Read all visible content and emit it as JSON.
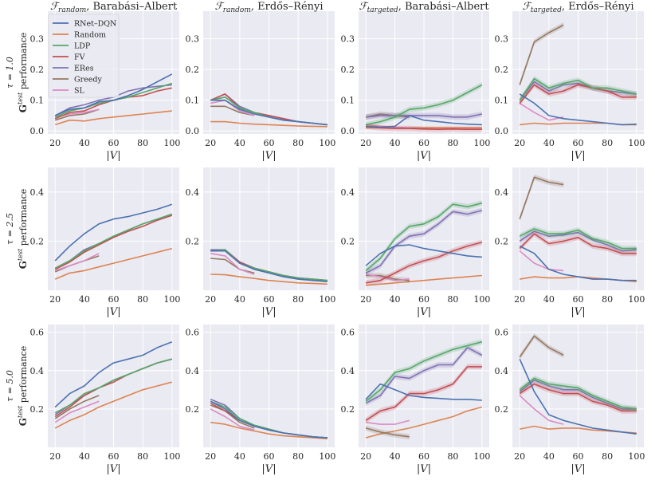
{
  "legend": [
    {
      "name": "RNet–DQN",
      "color": "#4c72b0"
    },
    {
      "name": "Random",
      "color": "#dd8452"
    },
    {
      "name": "LDP",
      "color": "#55a868"
    },
    {
      "name": "FV",
      "color": "#c44e52"
    },
    {
      "name": "ERes",
      "color": "#8172b3"
    },
    {
      "name": "Greedy",
      "color": "#937860"
    },
    {
      "name": "SL",
      "color": "#da8bc3"
    }
  ],
  "colors": {
    "background": "#eaeaf2",
    "grid": "#ffffff"
  },
  "chart_data": {
    "type": "line",
    "columns": [
      {
        "title_f": "ℱ",
        "title_sub": "random",
        "title_rest": ", Barabási–Albert"
      },
      {
        "title_f": "ℱ",
        "title_sub": "random",
        "title_rest": ", Erdős–Rényi"
      },
      {
        "title_f": "ℱ",
        "title_sub": "targeted",
        "title_rest": ", Barabási–Albert"
      },
      {
        "title_f": "ℱ",
        "title_sub": "targeted",
        "title_rest": ", Erdős–Rényi"
      }
    ],
    "rows": [
      {
        "tau_label": "τ = 1.0",
        "ylabel_G": "G",
        "ylabel_sup": "test",
        "ylabel_rest": " performance",
        "ylim": [
          -0.01,
          0.39
        ],
        "yticks": [
          "0.0",
          "0.1",
          "0.2",
          "0.3"
        ],
        "ytick_vals": [
          0,
          0.1,
          0.2,
          0.3
        ]
      },
      {
        "tau_label": "τ = 2.5",
        "ylabel_G": "G",
        "ylabel_sup": "test",
        "ylabel_rest": " performance",
        "ylim": [
          0.0,
          0.5
        ],
        "yticks": [
          "0.2",
          "0.4"
        ],
        "ytick_vals": [
          0.2,
          0.4
        ]
      },
      {
        "tau_label": "τ = 5.0",
        "ylabel_G": "G",
        "ylabel_sup": "test",
        "ylabel_rest": " performance",
        "ylim": [
          0.0,
          0.64
        ],
        "yticks": [
          "0.2",
          "0.4",
          "0.6"
        ],
        "ytick_vals": [
          0.2,
          0.4,
          0.6
        ]
      }
    ],
    "xlabel": "|V|",
    "xlim": [
      15,
      105
    ],
    "xticks": [
      "20",
      "40",
      "60",
      "80",
      "100"
    ],
    "xtick_vals": [
      20,
      40,
      60,
      80,
      100
    ],
    "x_full": [
      20,
      30,
      40,
      50,
      60,
      70,
      80,
      90,
      100
    ],
    "x_short": [
      20,
      30,
      40,
      50
    ],
    "panels": [
      [
        {
          "RNet–DQN": [
            0.05,
            0.07,
            0.075,
            0.095,
            0.1,
            0.115,
            0.135,
            0.16,
            0.185
          ],
          "Random": [
            0.02,
            0.035,
            0.032,
            0.04,
            0.045,
            0.05,
            0.055,
            0.06,
            0.065
          ],
          "LDP": [
            0.045,
            0.065,
            0.075,
            0.09,
            0.1,
            0.11,
            0.125,
            0.14,
            0.155
          ],
          "FV": [
            0.04,
            0.06,
            0.065,
            0.085,
            0.1,
            0.11,
            0.115,
            0.13,
            0.14
          ],
          "ERes": [
            0.05,
            0.075,
            0.085,
            0.1,
            0.11,
            0.13,
            0.14,
            0.145,
            0.15
          ],
          "Greedy": [
            0.035,
            0.05,
            0.055,
            0.07
          ],
          "SL": [
            0.045,
            0.055,
            0.06,
            0.07
          ]
        },
        {
          "RNet–DQN": [
            0.1,
            0.1,
            0.07,
            0.055,
            0.045,
            0.035,
            0.03,
            0.025,
            0.02
          ],
          "Random": [
            0.03,
            0.03,
            0.025,
            0.022,
            0.02,
            0.018,
            0.016,
            0.015,
            0.014
          ],
          "LDP": [
            0.1,
            0.11,
            0.075,
            0.06,
            0.045,
            0.035,
            0.03,
            0.025,
            0.02
          ],
          "FV": [
            0.1,
            0.12,
            0.075,
            0.06,
            0.05,
            0.04,
            0.03,
            0.025,
            0.02
          ],
          "ERes": [
            0.1,
            0.12,
            0.08,
            0.06,
            0.05,
            0.04,
            0.03,
            0.025,
            0.02
          ],
          "Greedy": [
            0.08,
            0.08,
            0.06,
            0.05
          ],
          "SL": [
            0.09,
            0.1,
            0.065,
            0.05
          ]
        },
        {
          "RNet–DQN": [
            0.015,
            0.012,
            0.015,
            0.05,
            0.035,
            0.03,
            0.025,
            0.022,
            0.02
          ],
          "Random": [
            0.01,
            0.01,
            0.01,
            0.01,
            0.01,
            0.01,
            0.01,
            0.01,
            0.01
          ],
          "LDP": [
            0.02,
            0.03,
            0.045,
            0.07,
            0.075,
            0.085,
            0.1,
            0.125,
            0.15
          ],
          "FV": [
            0.015,
            0.01,
            0.008,
            0.008,
            0.006,
            0.005,
            0.006,
            0.005,
            0.005
          ],
          "ERes": [
            0.045,
            0.05,
            0.05,
            0.05,
            0.05,
            0.05,
            0.045,
            0.045,
            0.055
          ],
          "Greedy": [
            0.045,
            0.055,
            0.05,
            0.045
          ],
          "SL": [
            0.02,
            0.015,
            0.012,
            0.01
          ]
        },
        {
          "RNet–DQN": [
            0.12,
            0.09,
            0.05,
            0.04,
            0.035,
            0.03,
            0.025,
            0.02,
            0.022
          ],
          "Random": [
            0.02,
            0.025,
            0.022,
            0.025,
            0.025,
            0.025,
            0.025,
            0.02,
            0.02
          ],
          "LDP": [
            0.1,
            0.17,
            0.14,
            0.155,
            0.165,
            0.14,
            0.14,
            0.13,
            0.12
          ],
          "FV": [
            0.09,
            0.15,
            0.12,
            0.13,
            0.15,
            0.14,
            0.13,
            0.11,
            0.11
          ],
          "ERes": [
            0.1,
            0.16,
            0.13,
            0.15,
            0.155,
            0.14,
            0.13,
            0.125,
            0.12
          ],
          "Greedy": [
            0.15,
            0.29,
            0.32,
            0.345
          ],
          "SL": [
            0.09,
            0.06,
            0.035,
            0.045
          ]
        }
      ],
      [
        {
          "RNet–DQN": [
            0.12,
            0.18,
            0.23,
            0.27,
            0.29,
            0.3,
            0.315,
            0.33,
            0.35
          ],
          "Random": [
            0.045,
            0.07,
            0.08,
            0.095,
            0.11,
            0.125,
            0.14,
            0.155,
            0.17
          ],
          "LDP": [
            0.09,
            0.12,
            0.16,
            0.19,
            0.22,
            0.245,
            0.27,
            0.29,
            0.31
          ],
          "FV": [
            0.085,
            0.115,
            0.155,
            0.185,
            0.215,
            0.24,
            0.26,
            0.285,
            0.305
          ],
          "ERes": [
            0.09,
            0.12,
            0.165,
            0.19,
            0.22,
            0.245,
            0.27,
            0.29,
            0.31
          ],
          "Greedy": [
            0.075,
            0.1,
            0.12,
            0.14
          ],
          "SL": [
            0.08,
            0.1,
            0.12,
            0.15
          ]
        },
        {
          "RNet–DQN": [
            0.16,
            0.16,
            0.11,
            0.085,
            0.07,
            0.055,
            0.045,
            0.04,
            0.035
          ],
          "Random": [
            0.065,
            0.063,
            0.055,
            0.048,
            0.04,
            0.035,
            0.03,
            0.028,
            0.025
          ],
          "LDP": [
            0.16,
            0.165,
            0.11,
            0.09,
            0.075,
            0.06,
            0.05,
            0.045,
            0.04
          ],
          "FV": [
            0.16,
            0.165,
            0.115,
            0.09,
            0.075,
            0.06,
            0.05,
            0.045,
            0.04
          ],
          "ERes": [
            0.165,
            0.165,
            0.115,
            0.09,
            0.075,
            0.06,
            0.05,
            0.045,
            0.04
          ],
          "Greedy": [
            0.13,
            0.125,
            0.085,
            0.07
          ],
          "SL": [
            0.15,
            0.14,
            0.085,
            0.065
          ]
        },
        {
          "RNet–DQN": [
            0.1,
            0.15,
            0.18,
            0.185,
            0.17,
            0.16,
            0.15,
            0.14,
            0.135
          ],
          "Random": [
            0.02,
            0.025,
            0.03,
            0.035,
            0.04,
            0.045,
            0.05,
            0.055,
            0.06
          ],
          "LDP": [
            0.08,
            0.13,
            0.21,
            0.26,
            0.27,
            0.3,
            0.35,
            0.34,
            0.355
          ],
          "FV": [
            0.03,
            0.04,
            0.07,
            0.1,
            0.12,
            0.135,
            0.16,
            0.18,
            0.195
          ],
          "ERes": [
            0.07,
            0.1,
            0.18,
            0.22,
            0.23,
            0.27,
            0.32,
            0.31,
            0.325
          ],
          "Greedy": [
            0.06,
            0.06,
            0.045,
            0.04
          ],
          "SL": [
            0.065,
            0.055,
            0.04,
            0.045
          ]
        },
        {
          "RNet–DQN": [
            0.18,
            0.15,
            0.085,
            0.065,
            0.055,
            0.045,
            0.045,
            0.04,
            0.04
          ],
          "Random": [
            0.045,
            0.055,
            0.05,
            0.05,
            0.055,
            0.05,
            0.045,
            0.04,
            0.035
          ],
          "LDP": [
            0.22,
            0.25,
            0.23,
            0.23,
            0.245,
            0.21,
            0.195,
            0.17,
            0.17
          ],
          "FV": [
            0.17,
            0.23,
            0.19,
            0.2,
            0.215,
            0.18,
            0.17,
            0.15,
            0.15
          ],
          "ERes": [
            0.2,
            0.24,
            0.22,
            0.225,
            0.235,
            0.205,
            0.185,
            0.16,
            0.165
          ],
          "Greedy": [
            0.29,
            0.46,
            0.44,
            0.43
          ],
          "SL": [
            0.16,
            0.11,
            0.085,
            0.08
          ]
        }
      ],
      [
        {
          "RNet–DQN": [
            0.21,
            0.28,
            0.32,
            0.39,
            0.44,
            0.46,
            0.48,
            0.52,
            0.55
          ],
          "Random": [
            0.1,
            0.14,
            0.17,
            0.21,
            0.24,
            0.27,
            0.3,
            0.32,
            0.34
          ],
          "LDP": [
            0.18,
            0.22,
            0.28,
            0.31,
            0.35,
            0.38,
            0.41,
            0.44,
            0.46
          ],
          "FV": [
            0.16,
            0.21,
            0.27,
            0.31,
            0.34,
            0.38,
            0.41,
            0.44,
            0.46
          ],
          "ERes": [
            0.17,
            0.22,
            0.27,
            0.31,
            0.35,
            0.38,
            0.41,
            0.44,
            0.46
          ],
          "Greedy": [
            0.15,
            0.2,
            0.24,
            0.27
          ],
          "SL": [
            0.13,
            0.18,
            0.21,
            0.24
          ]
        },
        {
          "RNet–DQN": [
            0.24,
            0.2,
            0.14,
            0.11,
            0.09,
            0.075,
            0.065,
            0.055,
            0.05
          ],
          "Random": [
            0.13,
            0.12,
            0.1,
            0.085,
            0.07,
            0.06,
            0.055,
            0.05,
            0.045
          ],
          "LDP": [
            0.24,
            0.21,
            0.15,
            0.115,
            0.095,
            0.075,
            0.065,
            0.055,
            0.05
          ],
          "FV": [
            0.23,
            0.19,
            0.14,
            0.11,
            0.09,
            0.075,
            0.065,
            0.055,
            0.05
          ],
          "ERes": [
            0.25,
            0.22,
            0.15,
            0.115,
            0.095,
            0.075,
            0.065,
            0.055,
            0.05
          ],
          "Greedy": [
            0.22,
            0.19,
            0.13,
            0.1
          ],
          "SL": [
            0.2,
            0.16,
            0.11,
            0.09
          ]
        },
        {
          "RNet–DQN": [
            0.25,
            0.33,
            0.3,
            0.27,
            0.26,
            0.255,
            0.25,
            0.25,
            0.245
          ],
          "Random": [
            0.05,
            0.07,
            0.085,
            0.1,
            0.12,
            0.14,
            0.16,
            0.19,
            0.21
          ],
          "LDP": [
            0.24,
            0.3,
            0.39,
            0.41,
            0.45,
            0.48,
            0.51,
            0.53,
            0.55
          ],
          "FV": [
            0.14,
            0.19,
            0.21,
            0.28,
            0.28,
            0.3,
            0.33,
            0.42,
            0.42
          ],
          "ERes": [
            0.23,
            0.27,
            0.37,
            0.36,
            0.4,
            0.43,
            0.43,
            0.52,
            0.48
          ],
          "Greedy": [
            0.1,
            0.08,
            0.065,
            0.055
          ],
          "SL": [
            0.13,
            0.12,
            0.12,
            0.14
          ]
        },
        {
          "RNet–DQN": [
            0.46,
            0.29,
            0.17,
            0.14,
            0.12,
            0.1,
            0.09,
            0.08,
            0.07
          ],
          "Random": [
            0.095,
            0.11,
            0.095,
            0.1,
            0.1,
            0.09,
            0.085,
            0.08,
            0.075
          ],
          "LDP": [
            0.3,
            0.36,
            0.33,
            0.32,
            0.31,
            0.27,
            0.24,
            0.21,
            0.2
          ],
          "FV": [
            0.28,
            0.33,
            0.3,
            0.28,
            0.28,
            0.24,
            0.22,
            0.19,
            0.19
          ],
          "ERes": [
            0.29,
            0.35,
            0.32,
            0.3,
            0.3,
            0.26,
            0.23,
            0.2,
            0.2
          ],
          "Greedy": [
            0.47,
            0.58,
            0.52,
            0.48
          ],
          "SL": [
            0.27,
            0.2,
            0.14,
            0.12
          ]
        }
      ]
    ]
  }
}
